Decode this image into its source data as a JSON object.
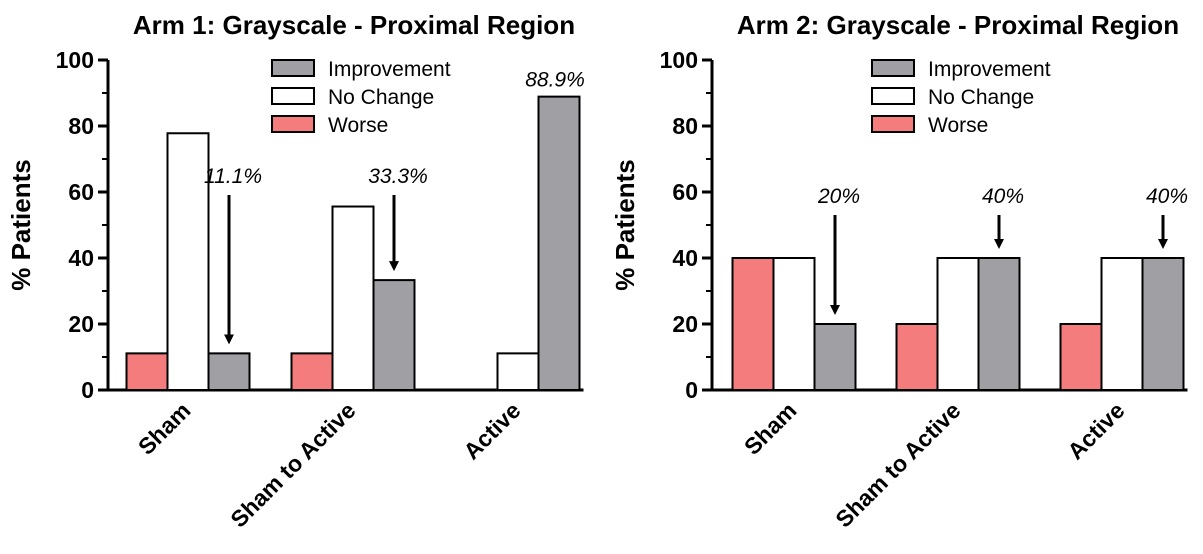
{
  "colors": {
    "improvement": "#a0a0a4",
    "no_change": "#ffffff",
    "worse": "#f47c7c",
    "axis": "#000000"
  },
  "chart_data": [
    {
      "type": "bar",
      "title": "Arm 1: Grayscale - Proximal Region",
      "ylabel": "% Patients",
      "xlabel": "",
      "ylim": [
        0,
        100
      ],
      "yticks": [
        0,
        20,
        40,
        60,
        80,
        100
      ],
      "categories": [
        "Sham",
        "Sham to Active",
        "Active"
      ],
      "series": [
        {
          "name": "Worse",
          "values": [
            11.1,
            11.1,
            0
          ]
        },
        {
          "name": "No Change",
          "values": [
            77.8,
            55.6,
            11.1
          ]
        },
        {
          "name": "Improvement",
          "values": [
            11.1,
            33.3,
            88.9
          ]
        }
      ],
      "legend": {
        "position": "top-right",
        "order": [
          "Improvement",
          "No Change",
          "Worse"
        ]
      },
      "annotations": [
        {
          "category": "Sham",
          "series": "Improvement",
          "label": "11.1%",
          "arrow": true
        },
        {
          "category": "Sham to Active",
          "series": "Improvement",
          "label": "33.3%",
          "arrow": true
        },
        {
          "category": "Active",
          "series": "Improvement",
          "label": "88.9%",
          "arrow": false
        }
      ],
      "grid": false
    },
    {
      "type": "bar",
      "title": "Arm 2: Grayscale - Proximal Region",
      "ylabel": "% Patients",
      "xlabel": "",
      "ylim": [
        0,
        100
      ],
      "yticks": [
        0,
        20,
        40,
        60,
        80,
        100
      ],
      "categories": [
        "Sham",
        "Sham to Active",
        "Active"
      ],
      "series": [
        {
          "name": "Worse",
          "values": [
            40,
            20,
            20
          ]
        },
        {
          "name": "No Change",
          "values": [
            40,
            40,
            40
          ]
        },
        {
          "name": "Improvement",
          "values": [
            20,
            40,
            40
          ]
        }
      ],
      "legend": {
        "position": "top-center",
        "order": [
          "Improvement",
          "No Change",
          "Worse"
        ]
      },
      "annotations": [
        {
          "category": "Sham",
          "series": "Improvement",
          "label": "20%",
          "arrow": true
        },
        {
          "category": "Sham to Active",
          "series": "Improvement",
          "label": "40%",
          "arrow": true
        },
        {
          "category": "Active",
          "series": "Improvement",
          "label": "40%",
          "arrow": true
        }
      ],
      "grid": false
    }
  ]
}
